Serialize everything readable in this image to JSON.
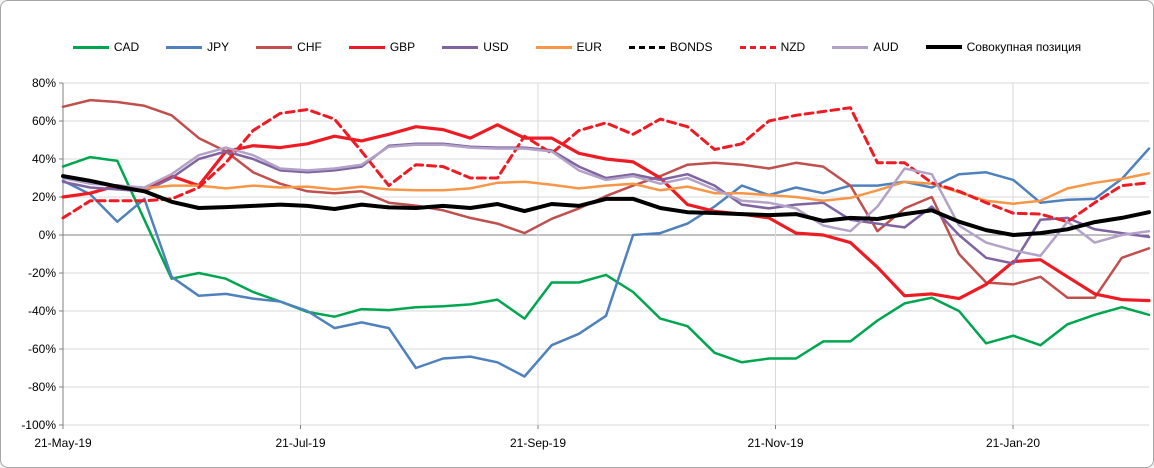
{
  "window": {
    "background": "#ffffff",
    "border_color": "#a6a6a6"
  },
  "chart_data": {
    "type": "line",
    "title": "",
    "legend_position": "top",
    "grid": true,
    "gridline_color": "#d9d9d9",
    "axis_color": "#808080",
    "ylim": [
      -100,
      80
    ],
    "y_tick_labels": [
      "80%",
      "60%",
      "40%",
      "20%",
      "0%",
      "-20%",
      "-40%",
      "-60%",
      "-80%",
      "-100%"
    ],
    "y_tick_values": [
      80,
      60,
      40,
      20,
      0,
      -20,
      -40,
      -60,
      -80,
      -100
    ],
    "x_tick_labels": [
      "21-May-19",
      "21-Jul-19",
      "21-Sep-19",
      "21-Nov-19",
      "21-Jan-20"
    ],
    "x_note": "weekly points, 41 samples from 21-May-19 to late Feb-20; values in percent",
    "series": [
      {
        "name": "CAD",
        "color": "#00a64f",
        "style": "solid",
        "width": 2.5,
        "values": [
          36,
          41,
          39,
          8,
          -23,
          -20,
          -23,
          -30,
          -35,
          -40.5,
          -43,
          -39,
          -39.5,
          -38,
          -37.5,
          -36.5,
          -34,
          -44,
          -25,
          -25,
          -21,
          -30,
          -44,
          -48,
          -62,
          -67,
          -65,
          -65,
          -56,
          -56,
          -45,
          -36,
          -33,
          -40,
          -57,
          -53,
          -58,
          -47,
          -42,
          -38,
          -42
        ]
      },
      {
        "name": "JPY",
        "color": "#4f81bd",
        "style": "solid",
        "width": 2.5,
        "values": [
          28.5,
          21.5,
          7,
          19,
          -22,
          -32,
          -31,
          -33.5,
          -35,
          -40,
          -49,
          -46,
          -49,
          -70,
          -65,
          -64,
          -67,
          -74.5,
          -58,
          -52,
          -42.5,
          0,
          1,
          6,
          15,
          26,
          21,
          25,
          22,
          26,
          26,
          28,
          25,
          32,
          33,
          29,
          17,
          18.5,
          19,
          29.5,
          45.5
        ]
      },
      {
        "name": "CHF",
        "color": "#c0504d",
        "style": "solid",
        "width": 2.5,
        "values": [
          67.5,
          71,
          70,
          68,
          63,
          51,
          44,
          33,
          27,
          23,
          22,
          23,
          17,
          15.5,
          13,
          9,
          6,
          1,
          8.5,
          14,
          20.5,
          26,
          31,
          37,
          38,
          37,
          35,
          38,
          36,
          26,
          2,
          14,
          20,
          -10,
          -25,
          -26,
          -22,
          -33,
          -33,
          -12,
          -7
        ]
      },
      {
        "name": "GBP",
        "color": "#ed1c24",
        "style": "solid",
        "width": 3.2,
        "values": [
          20,
          22,
          26,
          24,
          31,
          26,
          44,
          47,
          46,
          48,
          52,
          49.5,
          53,
          57,
          55.5,
          51,
          58,
          51,
          51,
          43,
          40,
          38.5,
          30,
          16,
          12.5,
          11,
          9,
          1,
          0,
          -4,
          -17,
          -32,
          -31,
          -33.5,
          -26,
          -14,
          -13,
          -22,
          -31,
          -34,
          -34.5
        ]
      },
      {
        "name": "USD",
        "color": "#8064a2",
        "style": "solid",
        "width": 2.5,
        "values": [
          28,
          25,
          24,
          23,
          30,
          40,
          44,
          40,
          34,
          33,
          34,
          36,
          47,
          48,
          48,
          46.5,
          46,
          46,
          44.5,
          36,
          30,
          32,
          29,
          32,
          26,
          16,
          14,
          16,
          17,
          8,
          6,
          4,
          15,
          0,
          -12,
          -15,
          8,
          9,
          3,
          1,
          -1
        ]
      },
      {
        "name": "EUR",
        "color": "#f79646",
        "style": "solid",
        "width": 2.5,
        "values": [
          31,
          28,
          25.5,
          24.5,
          26,
          26,
          24.5,
          26,
          25,
          25.5,
          24,
          25.5,
          24,
          23.5,
          23.5,
          24.5,
          27.5,
          28,
          26.5,
          24.5,
          26,
          27,
          23.5,
          25.5,
          22,
          22,
          21,
          20,
          18,
          19.5,
          23.5,
          28,
          27,
          22.5,
          18,
          16.5,
          18,
          24.5,
          27.5,
          29.5,
          32.5
        ]
      },
      {
        "name": "BONDS",
        "color": "#000000",
        "style": "dashed",
        "width": 2.2,
        "hidden_behind_total": true,
        "values": [
          31,
          28.5,
          25.5,
          23,
          17.5,
          14.2,
          14.7,
          15.3,
          16,
          15.3,
          13.7,
          16,
          14.5,
          14.2,
          15.3,
          14.2,
          16.3,
          12.6,
          16.3,
          15.3,
          19,
          19,
          14.2,
          12,
          11.6,
          11,
          10.5,
          11,
          7.4,
          9,
          8.4,
          11,
          13,
          7,
          2.6,
          0,
          1,
          3,
          6.8,
          9,
          12
        ]
      },
      {
        "name": "NZD",
        "color": "#ed1c24",
        "style": "dashed",
        "width": 3,
        "values": [
          9,
          18,
          18,
          18,
          19,
          25,
          38,
          55,
          64,
          66,
          61,
          44,
          26,
          37,
          36,
          30,
          30,
          52,
          43,
          55,
          59,
          53,
          61,
          57,
          45,
          48,
          60,
          63,
          65,
          67,
          38,
          38,
          27.5,
          23,
          17,
          11.5,
          11,
          7,
          17,
          26,
          27.5
        ]
      },
      {
        "name": "AUD",
        "color": "#b3a2c7",
        "style": "solid",
        "width": 2.5,
        "values": [
          30,
          27,
          26,
          25,
          32,
          42,
          46,
          42,
          35,
          34,
          35,
          37,
          46.5,
          47.5,
          47.5,
          46,
          45.5,
          45.5,
          44,
          34,
          29,
          31,
          27,
          30,
          24,
          18,
          17,
          14,
          5,
          2,
          15,
          35,
          32,
          5,
          -4,
          -8,
          -11,
          7,
          -4,
          0,
          2
        ]
      },
      {
        "name": "Совокупная позиция",
        "color": "#000000",
        "style": "solid",
        "width": 4,
        "values": [
          31,
          28.5,
          25.5,
          23,
          17.5,
          14.2,
          14.7,
          15.3,
          16,
          15.3,
          13.7,
          16,
          14.5,
          14.2,
          15.3,
          14.2,
          16.3,
          12.6,
          16.3,
          15.3,
          19,
          19,
          14.2,
          12,
          11.6,
          11,
          10.5,
          11,
          7.4,
          9,
          8.4,
          11,
          13,
          7,
          2.6,
          0,
          1,
          3,
          6.8,
          9,
          12
        ]
      }
    ]
  }
}
